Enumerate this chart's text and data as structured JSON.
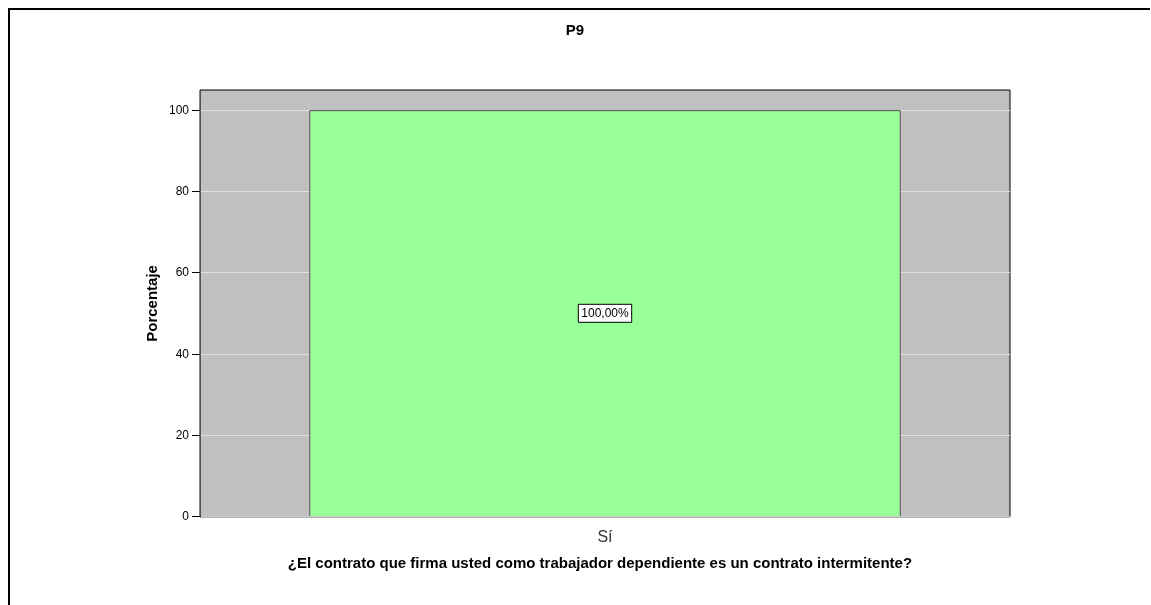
{
  "chart_data": {
    "type": "bar",
    "title": "P9",
    "xlabel": "¿El contrato que firma usted como trabajador dependiente es un contrato intermitente?",
    "ylabel": "Porcentaje",
    "categories": [
      "Sí"
    ],
    "values": [
      100
    ],
    "value_labels": [
      "100,00%"
    ],
    "color": "#99ff99",
    "ylim": [
      0,
      105
    ],
    "yticks": [
      0,
      20,
      40,
      60,
      80,
      100
    ],
    "grid": "y",
    "legend": false
  }
}
